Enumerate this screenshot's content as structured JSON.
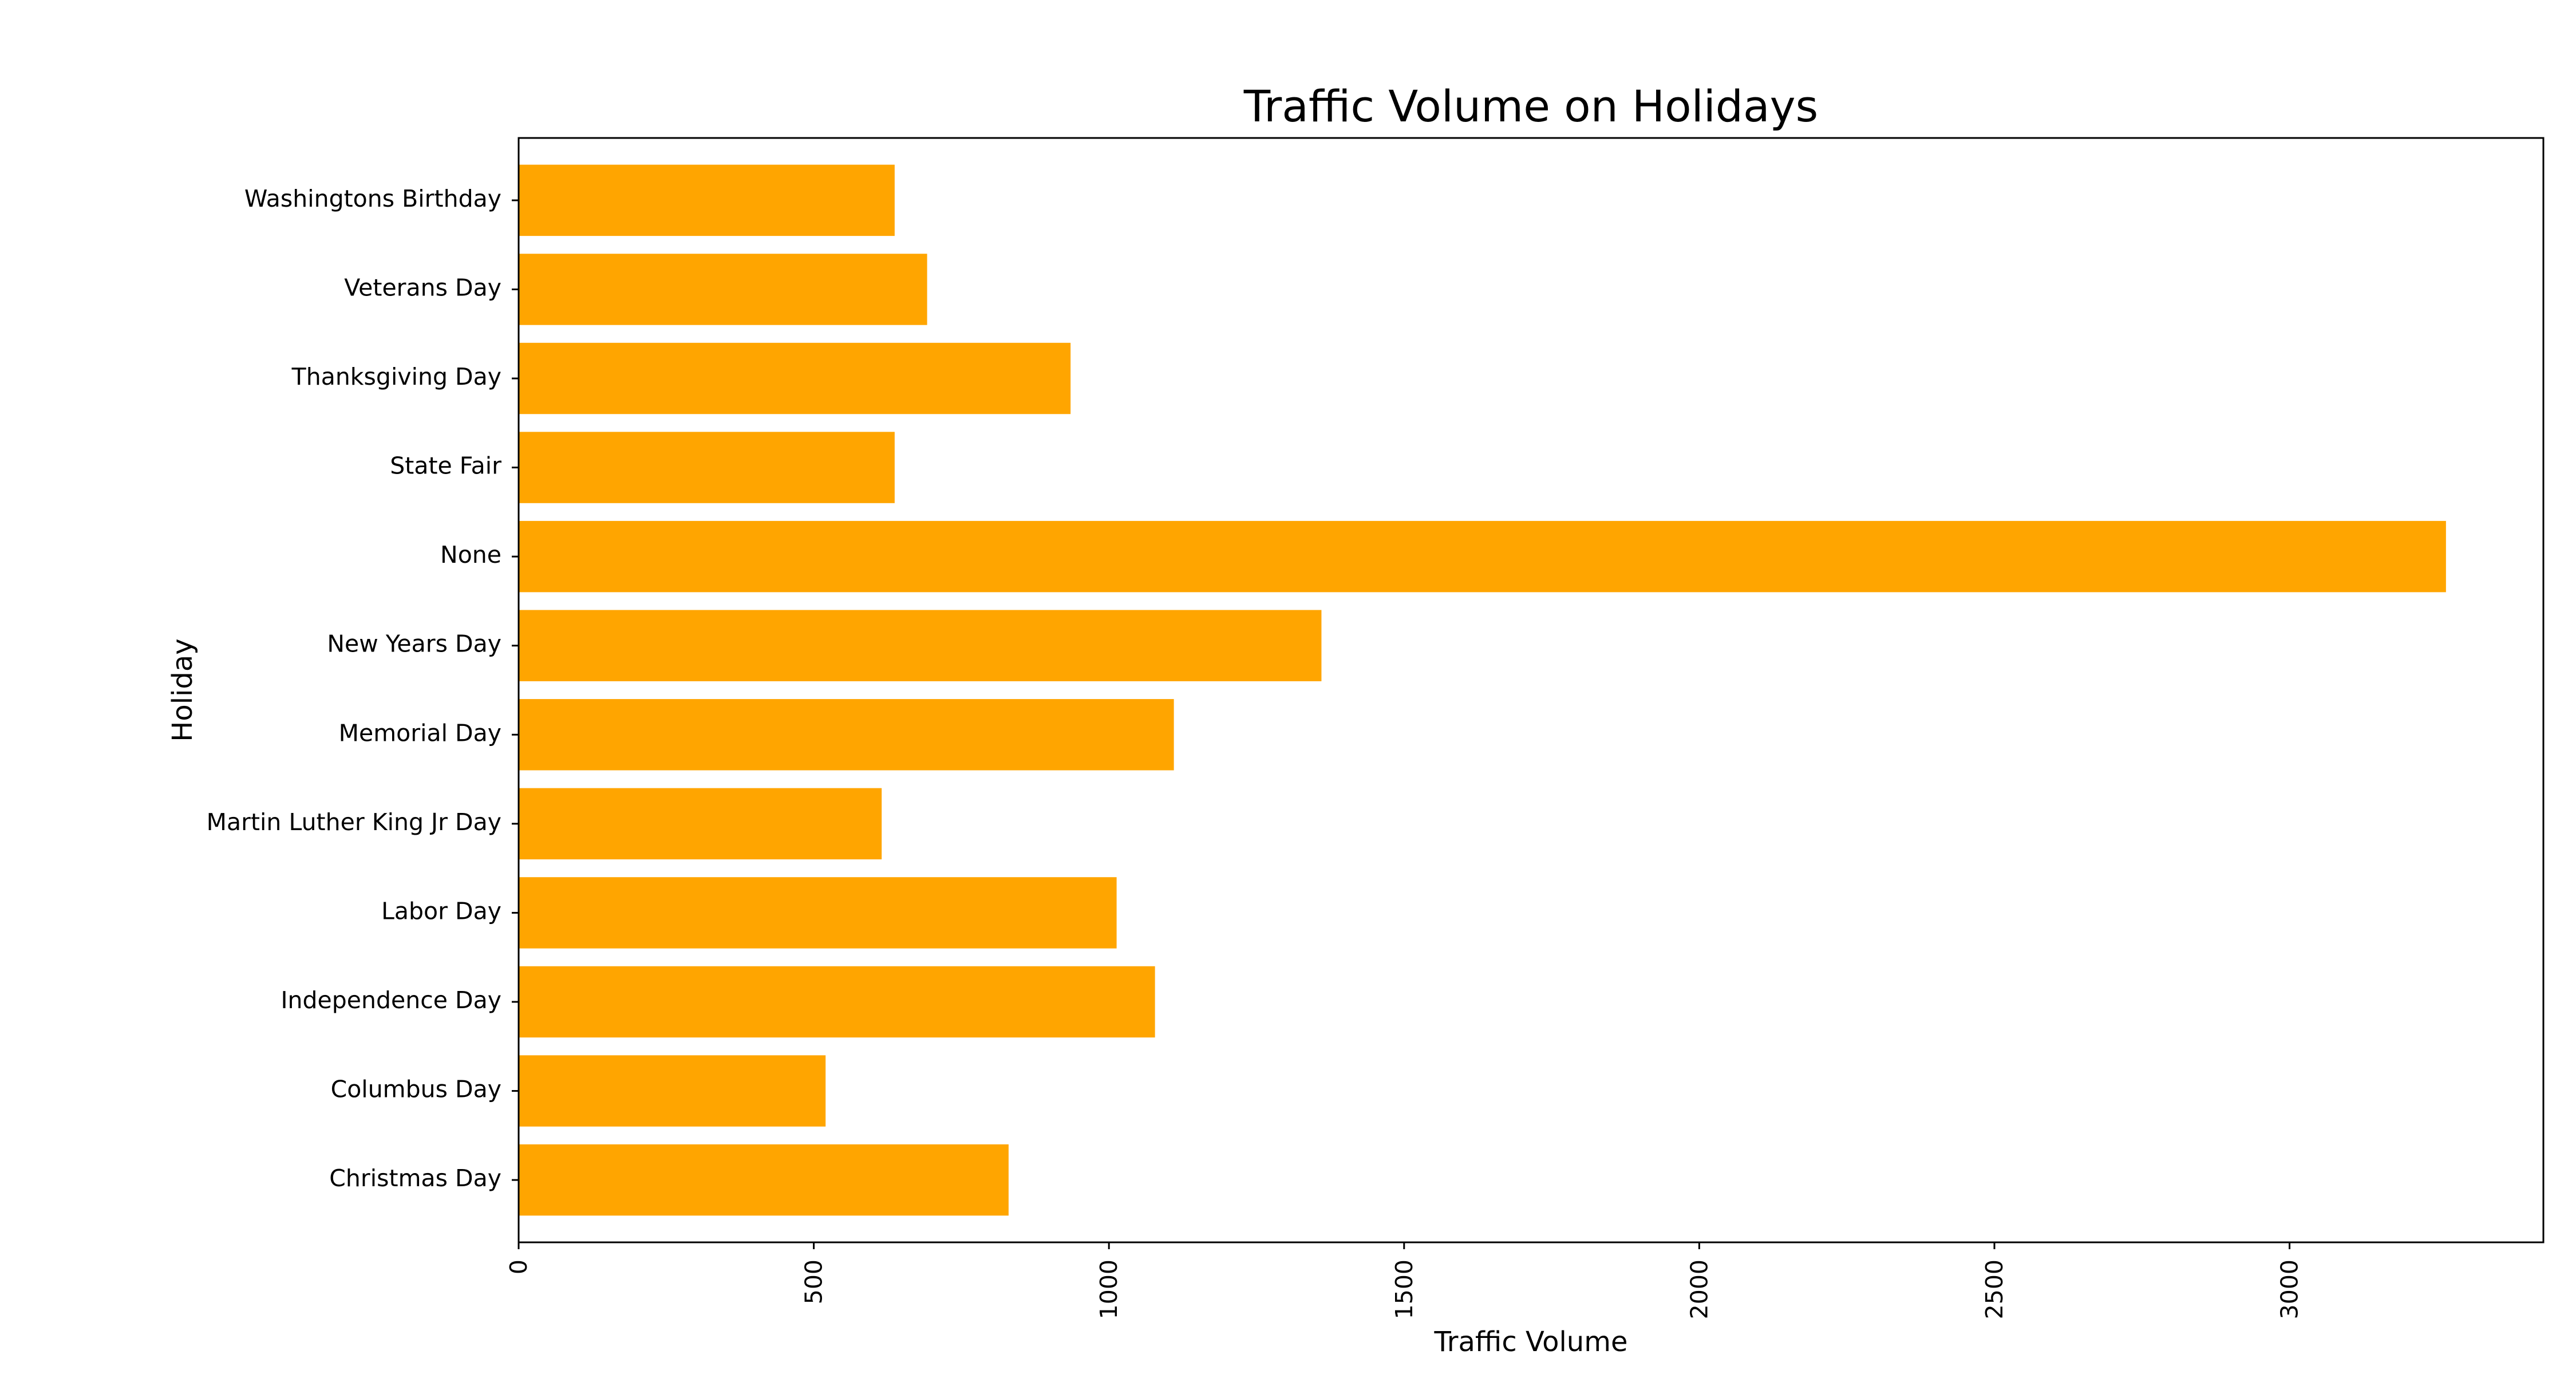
{
  "chart_data": {
    "type": "bar",
    "orientation": "horizontal",
    "title": "Traffic Volume on Holidays",
    "xlabel": "Traffic Volume",
    "ylabel": "Holiday",
    "categories": [
      "Christmas Day",
      "Columbus Day",
      "Independence Day",
      "Labor Day",
      "Martin Luther King Jr Day",
      "Memorial Day",
      "New Years Day",
      "None",
      "State Fair",
      "Thanksgiving Day",
      "Veterans Day",
      "Washingtons Birthday"
    ],
    "values": [
      830,
      520,
      1078,
      1013,
      615,
      1110,
      1360,
      3265,
      637,
      935,
      692,
      637
    ],
    "xlim": [
      0,
      3430
    ],
    "xticks": [
      0,
      500,
      1000,
      1500,
      2000,
      2500,
      3000
    ],
    "xtick_labels": [
      "0",
      "500",
      "1000",
      "1500",
      "2000",
      "2500",
      "3000"
    ],
    "xtick_label_rotation": "vertical",
    "bar_color": "#ffa500",
    "grid": false,
    "legend": "none"
  }
}
